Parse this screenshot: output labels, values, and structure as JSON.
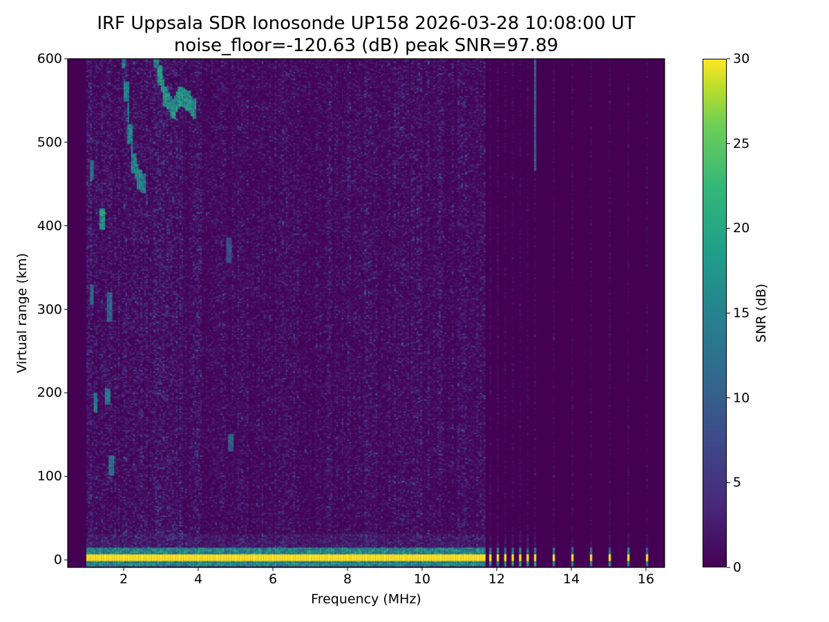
{
  "chart_data": {
    "type": "heatmap",
    "title": "IRF Uppsala SDR Ionosonde UP158 2026-03-28 10:08:00  UT",
    "subtitle": "noise_floor=-120.63 (dB) peak SNR=97.89",
    "xlabel": "Frequency (MHz)",
    "ylabel": "Virtual range (km)",
    "colorbar_label": "SNR (dB)",
    "xlim": [
      0.5,
      16.5
    ],
    "ylim": [
      -9,
      600
    ],
    "clim": [
      0,
      30
    ],
    "colormap": "viridis",
    "xticks": [
      2,
      4,
      6,
      8,
      10,
      12,
      14,
      16
    ],
    "yticks": [
      0,
      100,
      200,
      300,
      400,
      500,
      600
    ],
    "cticks": [
      0,
      5,
      10,
      15,
      20,
      25,
      30
    ],
    "continuous_sweep_mhz": [
      1.0,
      11.7
    ],
    "discrete_frequencies_mhz": [
      11.8,
      12.0,
      12.2,
      12.4,
      12.6,
      12.8,
      13.0,
      13.5,
      14.0,
      14.5,
      15.0,
      15.5,
      16.0
    ],
    "ground_echo": {
      "range_km": [
        -2,
        6
      ],
      "snr_db": 30
    },
    "echo_traces": [
      {
        "name": "F-trace-1",
        "points": [
          [
            2.0,
            600
          ],
          [
            2.05,
            560
          ],
          [
            2.15,
            510
          ],
          [
            2.25,
            475
          ],
          [
            2.4,
            455
          ],
          [
            2.5,
            450
          ]
        ],
        "snr_db": 18
      },
      {
        "name": "F-trace-2",
        "points": [
          [
            2.85,
            600
          ],
          [
            2.95,
            580
          ],
          [
            3.1,
            555
          ],
          [
            3.3,
            540
          ],
          [
            3.5,
            555
          ],
          [
            3.7,
            550
          ],
          [
            3.85,
            540
          ]
        ],
        "snr_db": 20
      },
      {
        "name": "streak-1.4",
        "points": [
          [
            1.4,
            395
          ],
          [
            1.4,
            420
          ]
        ],
        "snr_db": 22
      },
      {
        "name": "streak-1.1",
        "points": [
          [
            1.12,
            455
          ],
          [
            1.12,
            478
          ]
        ],
        "snr_db": 15
      },
      {
        "name": "streak-1.1b",
        "points": [
          [
            1.12,
            305
          ],
          [
            1.12,
            330
          ]
        ],
        "snr_db": 14
      },
      {
        "name": "streak-1.5",
        "points": [
          [
            1.55,
            185
          ],
          [
            1.55,
            205
          ]
        ],
        "snr_db": 16
      },
      {
        "name": "streak-1.6",
        "points": [
          [
            1.6,
            285
          ],
          [
            1.6,
            320
          ]
        ],
        "snr_db": 14
      },
      {
        "name": "streak-1.65",
        "points": [
          [
            1.65,
            100
          ],
          [
            1.65,
            125
          ]
        ],
        "snr_db": 15
      },
      {
        "name": "streak-1.2",
        "points": [
          [
            1.22,
            175
          ],
          [
            1.22,
            200
          ]
        ],
        "snr_db": 17
      },
      {
        "name": "streak-4.8",
        "points": [
          [
            4.8,
            355
          ],
          [
            4.8,
            385
          ]
        ],
        "snr_db": 11
      },
      {
        "name": "streak-4.85",
        "points": [
          [
            4.85,
            130
          ],
          [
            4.85,
            150
          ]
        ],
        "snr_db": 12
      },
      {
        "name": "streak-13.0",
        "points": [
          [
            13.0,
            465
          ],
          [
            13.0,
            600
          ]
        ],
        "snr_db": 12
      }
    ]
  }
}
